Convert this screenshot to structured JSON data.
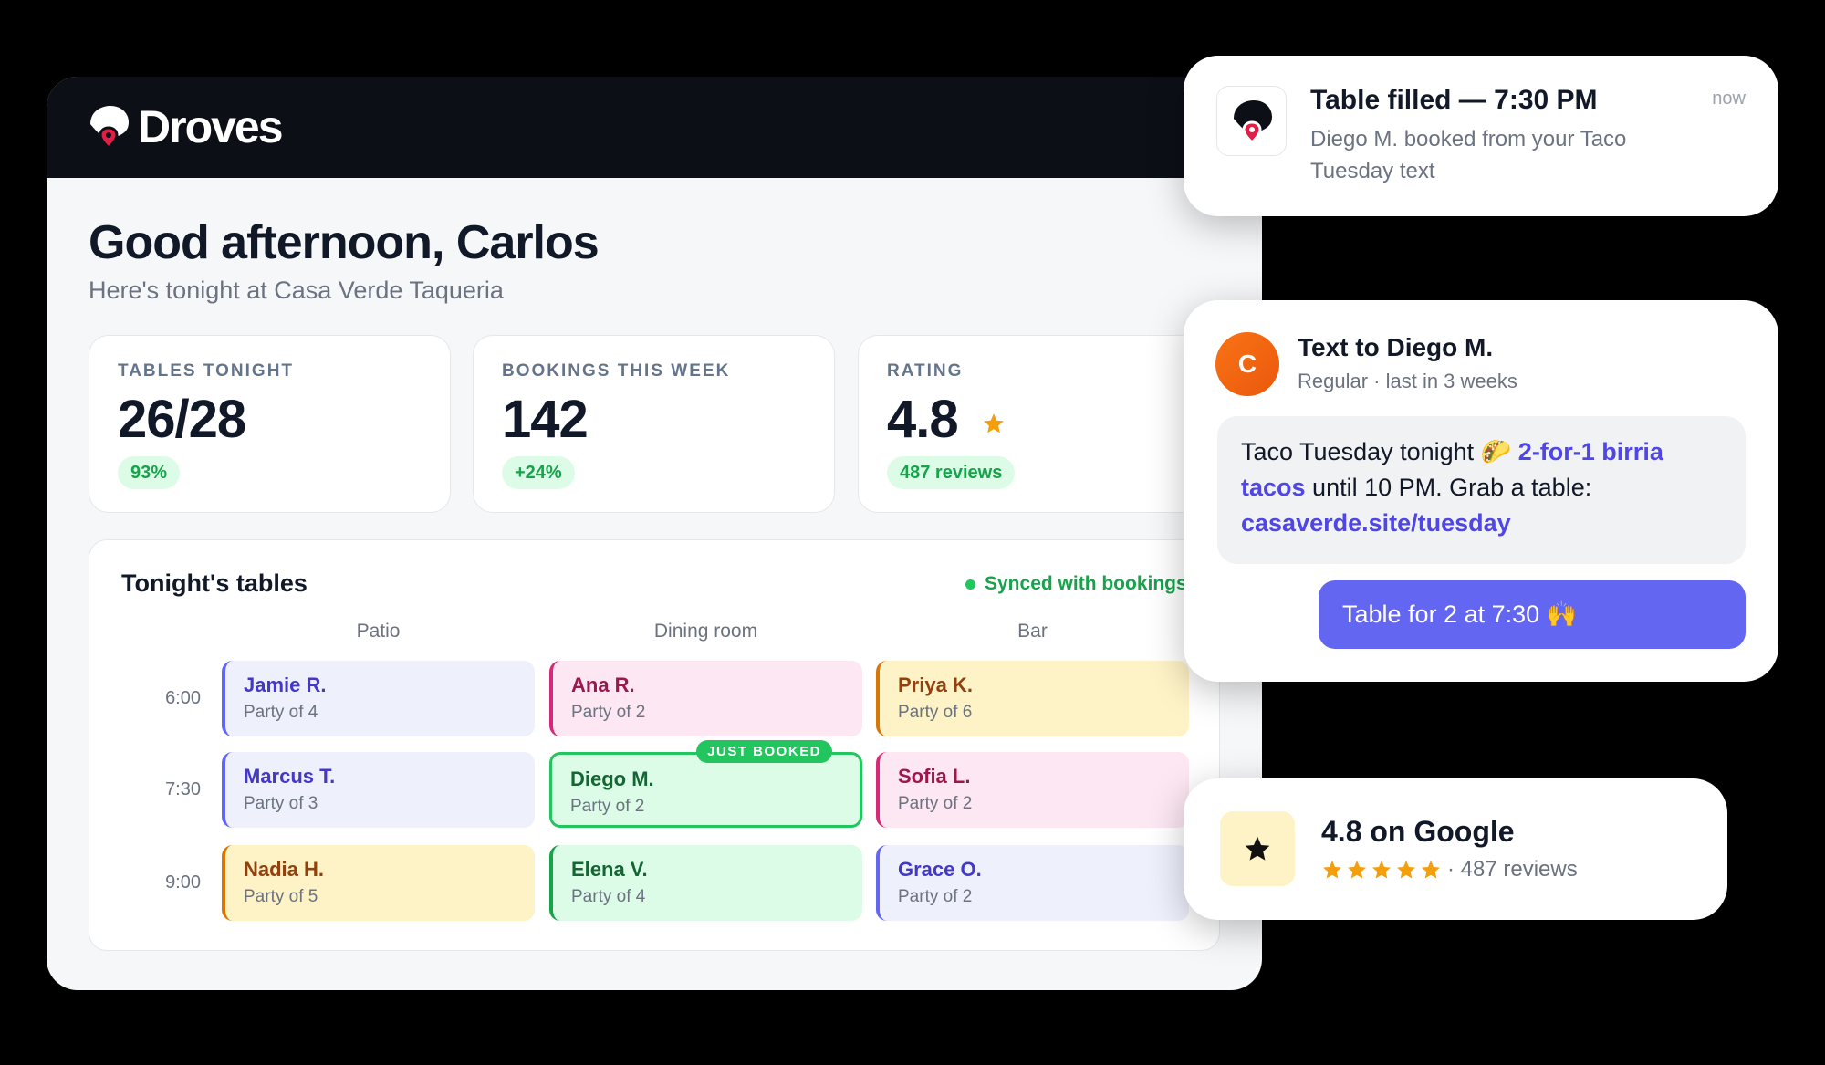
{
  "header": {
    "brand": "Droves"
  },
  "greeting": {
    "title": "Good afternoon, Carlos",
    "subtitle": "Here's tonight at Casa Verde Taqueria"
  },
  "stats": [
    {
      "label": "TABLES TONIGHT",
      "value": "26/28",
      "badge": "93%"
    },
    {
      "label": "BOOKINGS THIS WEEK",
      "value": "142",
      "badge": "+24%"
    },
    {
      "label": "RATING",
      "value": "4.8",
      "badge": "487 reviews"
    }
  ],
  "tables": {
    "title": "Tonight's tables",
    "status": "Synced with bookings",
    "columns": [
      "Patio",
      "Dining room",
      "Bar"
    ],
    "rows": [
      {
        "time": "6:00",
        "cells": [
          {
            "name": "Jamie R.",
            "party": "Party of 4",
            "color": "blue"
          },
          {
            "name": "Ana R.",
            "party": "Party of 2",
            "color": "pink"
          },
          {
            "name": "Priya K.",
            "party": "Party of 6",
            "color": "yellow"
          }
        ]
      },
      {
        "time": "7:30",
        "cells": [
          {
            "name": "Marcus T.",
            "party": "Party of 3",
            "color": "blue"
          },
          {
            "name": "Diego M.",
            "party": "Party of 2",
            "color": "green",
            "badge": "JUST BOOKED"
          },
          {
            "name": "Sofia L.",
            "party": "Party of 2",
            "color": "pink"
          }
        ]
      },
      {
        "time": "9:00",
        "cells": [
          {
            "name": "Nadia H.",
            "party": "Party of 5",
            "color": "yellow"
          },
          {
            "name": "Elena V.",
            "party": "Party of 4",
            "color": "green"
          },
          {
            "name": "Grace O.",
            "party": "Party of 2",
            "color": "blue"
          }
        ]
      }
    ]
  },
  "notification": {
    "title": "Table filled — 7:30 PM",
    "body": "Diego M. booked from your Taco Tuesday text",
    "time": "now"
  },
  "message": {
    "avatar": "C",
    "name": "Text to Diego M.",
    "subtitle": "Regular · last in 3 weeks",
    "parts": [
      "Taco Tuesday tonight 🌮 ",
      "2-for-1 birria tacos",
      " until 10 PM. Grab a table: ",
      "casaverde.site/tuesday"
    ],
    "reply": "Table for 2 at 7:30 🙌"
  },
  "review": {
    "title": "4.8 on Google",
    "text": "· 487 reviews"
  }
}
